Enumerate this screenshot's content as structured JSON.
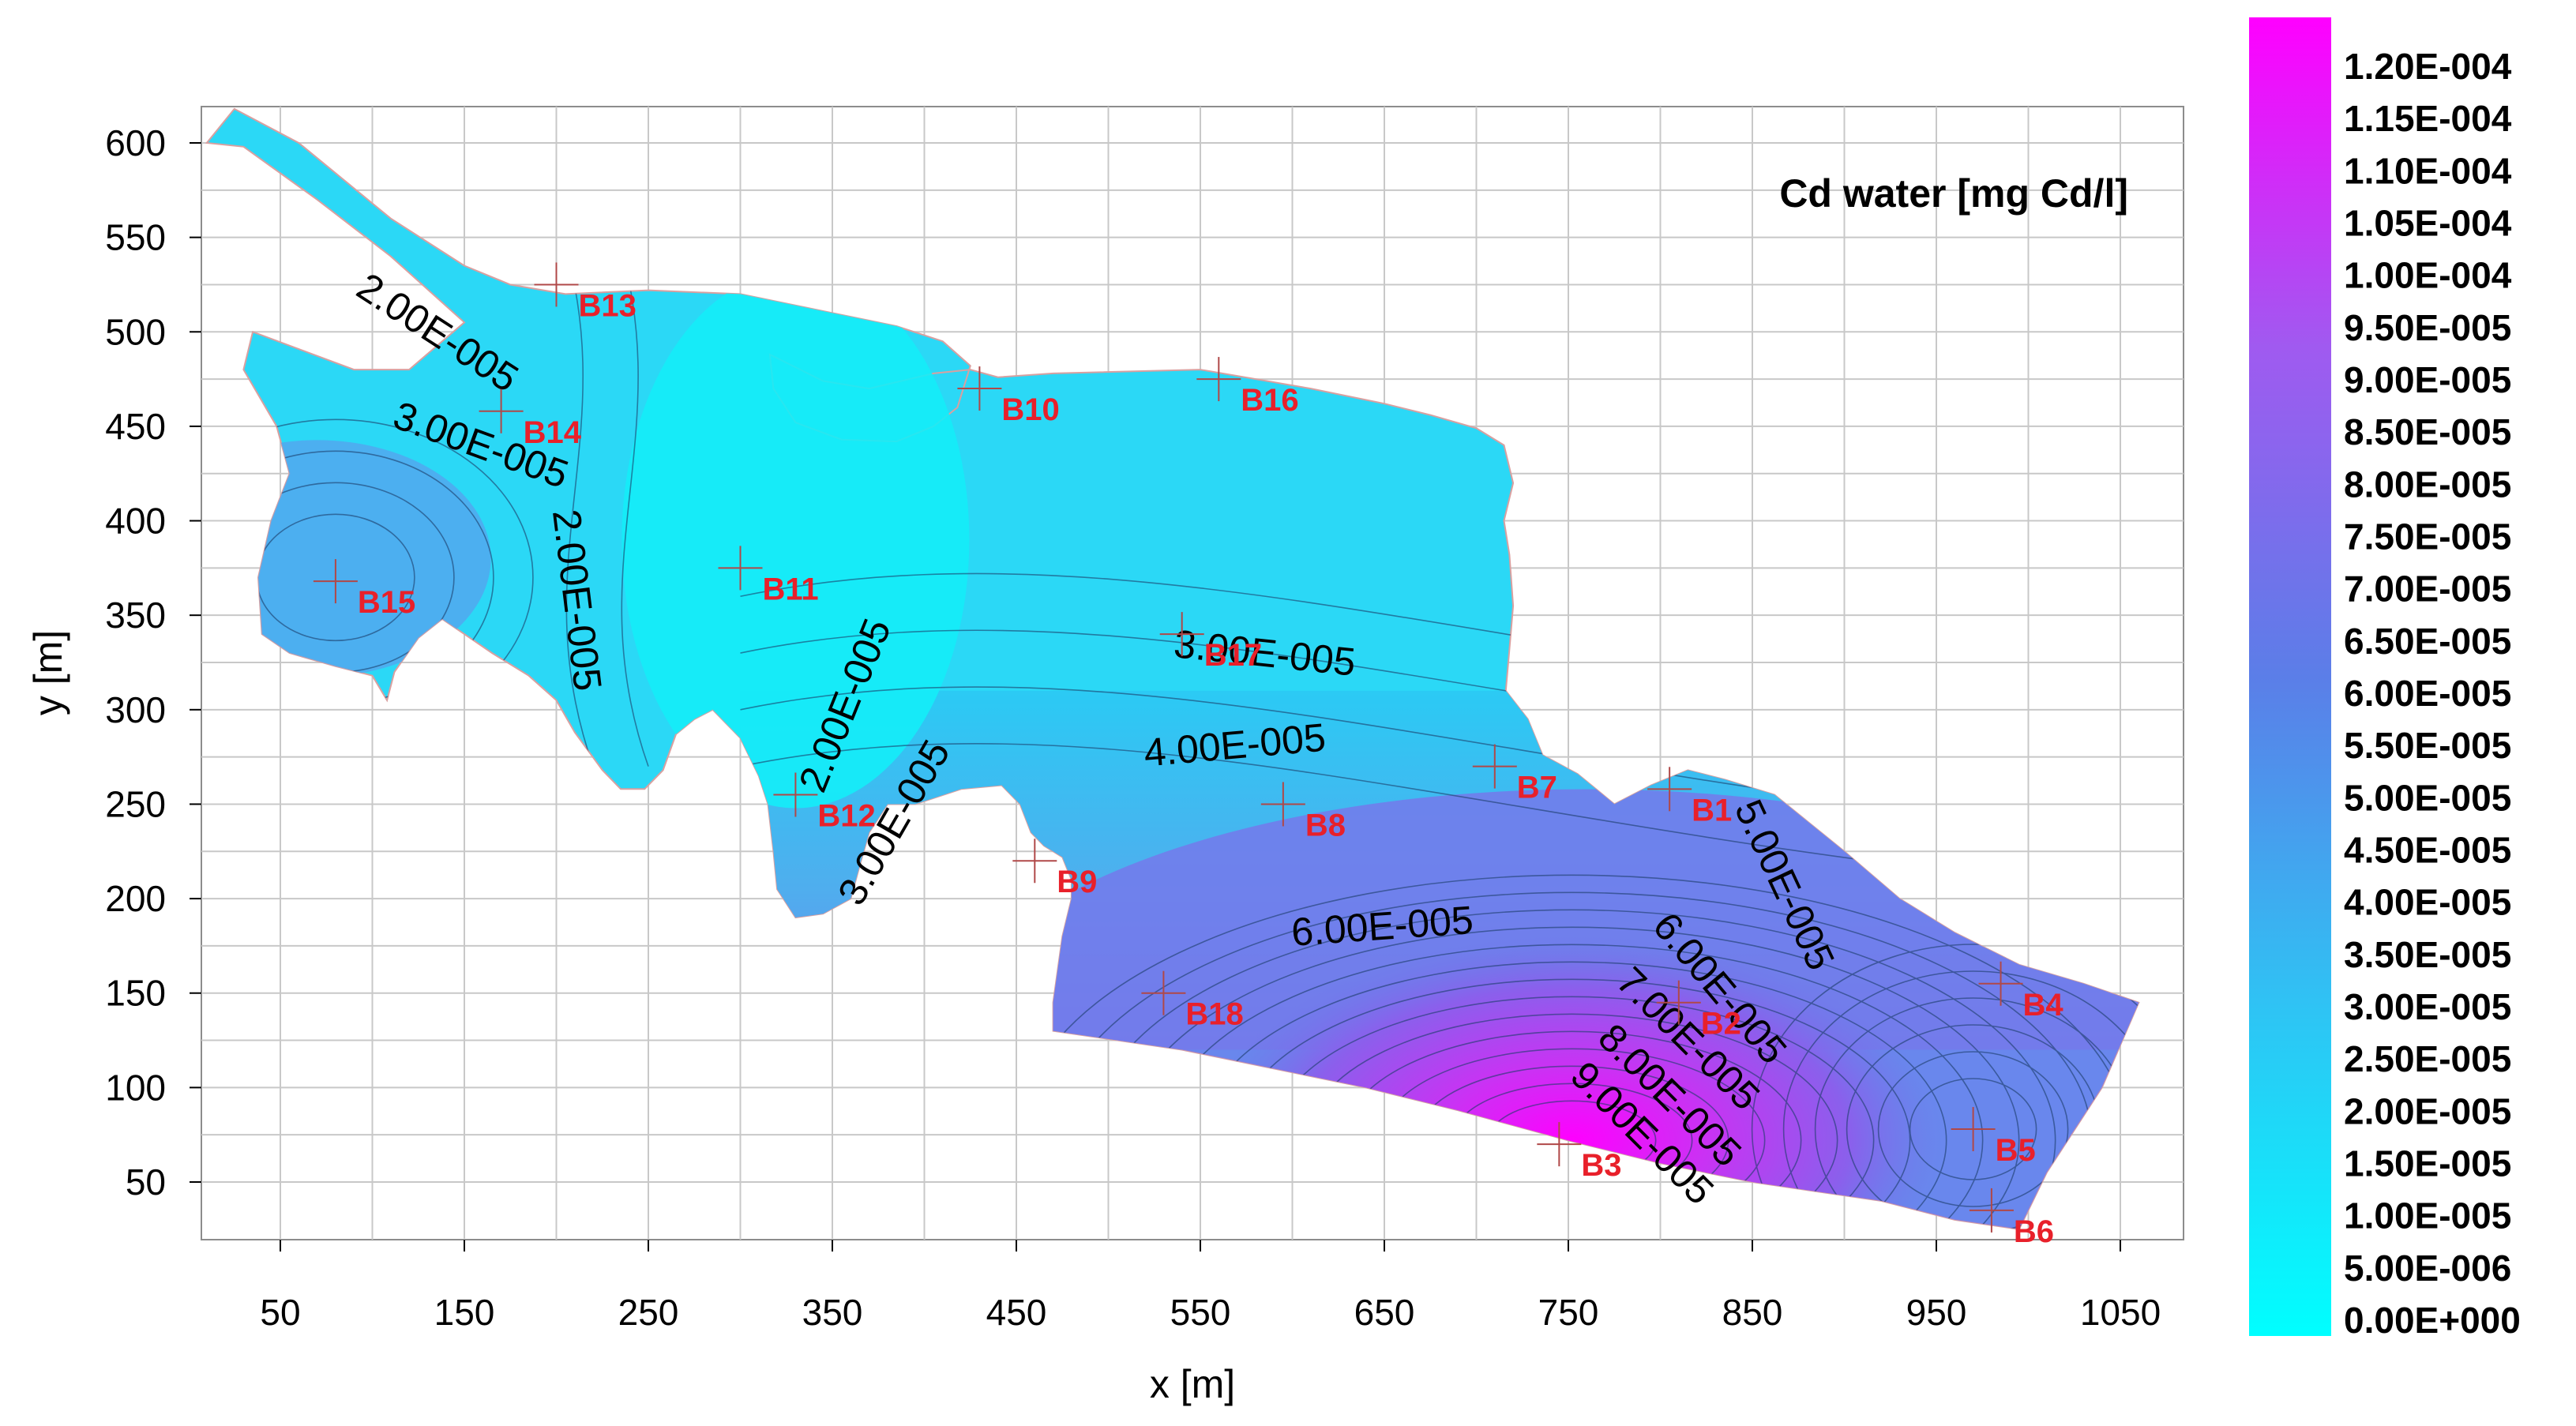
{
  "chart_data": {
    "type": "contour",
    "title": "Cd water [mg Cd/l]",
    "xlabel": "x [m]",
    "ylabel": "y [m]",
    "xlim": [
      10,
      1060
    ],
    "ylim": [
      10,
      620
    ],
    "x_ticks": [
      50,
      150,
      250,
      350,
      450,
      550,
      650,
      750,
      850,
      950,
      1050
    ],
    "y_ticks": [
      50,
      100,
      150,
      200,
      250,
      300,
      350,
      400,
      450,
      500,
      550,
      600
    ],
    "grid": true,
    "colorbar": {
      "min": 0.0,
      "max": 0.00012,
      "colors": {
        "low": "#00ffff",
        "mid": "#5b7ee8",
        "high": "#ff00ff"
      },
      "labels": [
        "1.20E-004",
        "1.15E-004",
        "1.10E-004",
        "1.05E-004",
        "1.00E-004",
        "9.50E-005",
        "9.00E-005",
        "8.50E-005",
        "8.00E-005",
        "7.50E-005",
        "7.00E-005",
        "6.50E-005",
        "6.00E-005",
        "5.50E-005",
        "5.00E-005",
        "4.50E-005",
        "4.00E-005",
        "3.50E-005",
        "3.00E-005",
        "2.50E-005",
        "2.00E-005",
        "1.50E-005",
        "1.00E-005",
        "5.00E-006",
        "0.00E+000"
      ]
    },
    "boreholes": [
      {
        "name": "B1",
        "x": 805,
        "y": 258
      },
      {
        "name": "B2",
        "x": 810,
        "y": 145
      },
      {
        "name": "B3",
        "x": 745,
        "y": 70
      },
      {
        "name": "B4",
        "x": 985,
        "y": 155
      },
      {
        "name": "B5",
        "x": 970,
        "y": 78
      },
      {
        "name": "B6",
        "x": 980,
        "y": 35
      },
      {
        "name": "B7",
        "x": 710,
        "y": 270
      },
      {
        "name": "B8",
        "x": 595,
        "y": 250
      },
      {
        "name": "B9",
        "x": 460,
        "y": 220
      },
      {
        "name": "B10",
        "x": 430,
        "y": 470
      },
      {
        "name": "B11",
        "x": 300,
        "y": 375
      },
      {
        "name": "B12",
        "x": 330,
        "y": 255
      },
      {
        "name": "B13",
        "x": 200,
        "y": 525
      },
      {
        "name": "B14",
        "x": 170,
        "y": 458
      },
      {
        "name": "B15",
        "x": 80,
        "y": 368
      },
      {
        "name": "B16",
        "x": 560,
        "y": 475
      },
      {
        "name": "B17",
        "x": 540,
        "y": 340
      },
      {
        "name": "B18",
        "x": 530,
        "y": 150
      }
    ],
    "contour_labels": [
      {
        "text": "2.00E-005",
        "x": 90,
        "y": 520,
        "angle": 33
      },
      {
        "text": "3.00E-005",
        "x": 110,
        "y": 450,
        "angle": 20
      },
      {
        "text": "2.00E-005",
        "x": 198,
        "y": 405,
        "angle": 83
      },
      {
        "text": "2.00E-005",
        "x": 345,
        "y": 255,
        "angle": -68
      },
      {
        "text": "3.00E-005",
        "x": 365,
        "y": 195,
        "angle": -60
      },
      {
        "text": "3.00E-005",
        "x": 535,
        "y": 328,
        "angle": 6
      },
      {
        "text": "4.00E-005",
        "x": 520,
        "y": 270,
        "angle": -5
      },
      {
        "text": "6.00E-005",
        "x": 600,
        "y": 175,
        "angle": -4
      },
      {
        "text": "5.00E-005",
        "x": 840,
        "y": 248,
        "angle": 65
      },
      {
        "text": "6.00E-005",
        "x": 795,
        "y": 185,
        "angle": 50
      },
      {
        "text": "7.00E-005",
        "x": 775,
        "y": 155,
        "angle": 45
      },
      {
        "text": "8.00E-005",
        "x": 765,
        "y": 125,
        "angle": 45
      },
      {
        "text": "9.00E-005",
        "x": 750,
        "y": 105,
        "angle": 45
      }
    ]
  }
}
